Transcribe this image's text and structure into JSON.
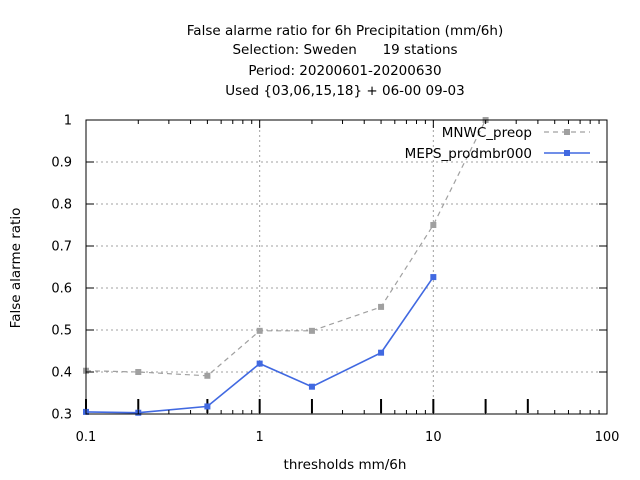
{
  "chart_data": {
    "type": "line",
    "title_lines": [
      "False alarme ratio  for 6h Precipitation (mm/6h)",
      "Selection: Sweden      19 stations",
      "Period: 20200601-20200630",
      "Used {03,06,15,18} + 06-00 09-03"
    ],
    "xlabel": "thresholds mm/6h",
    "ylabel": "False alarme ratio",
    "xscale": "log",
    "xlim": [
      0.1,
      100
    ],
    "ylim": [
      0.3,
      1.0
    ],
    "x_ticks": [
      0.1,
      1,
      10,
      100
    ],
    "x_tick_labels": [
      "0.1",
      "1",
      "10",
      "100"
    ],
    "y_ticks": [
      0.3,
      0.4,
      0.5,
      0.6,
      0.7,
      0.8,
      0.9,
      1.0
    ],
    "y_tick_labels": [
      "0.3",
      "0.4",
      "0.5",
      "0.6",
      "0.7",
      "0.8",
      "0.9",
      "1"
    ],
    "grid": true,
    "legend_position": "top-right",
    "threshold_markers": [
      0.1,
      0.2,
      0.5,
      1,
      2,
      5,
      10,
      20,
      35
    ],
    "series": [
      {
        "name": "MNWC_preop",
        "color": "#a0a0a0",
        "style": "dashed",
        "marker": "square",
        "x": [
          0.1,
          0.2,
          0.5,
          1,
          2,
          5,
          10,
          20
        ],
        "y": [
          0.403,
          0.4,
          0.391,
          0.498,
          0.498,
          0.555,
          0.75,
          1.0
        ]
      },
      {
        "name": "MEPS_prodmbr000",
        "color": "#4169e1",
        "style": "solid",
        "marker": "square",
        "x": [
          0.1,
          0.2,
          0.5,
          1,
          2,
          5,
          10
        ],
        "y": [
          0.305,
          0.303,
          0.318,
          0.42,
          0.365,
          0.446,
          0.626
        ]
      }
    ]
  }
}
